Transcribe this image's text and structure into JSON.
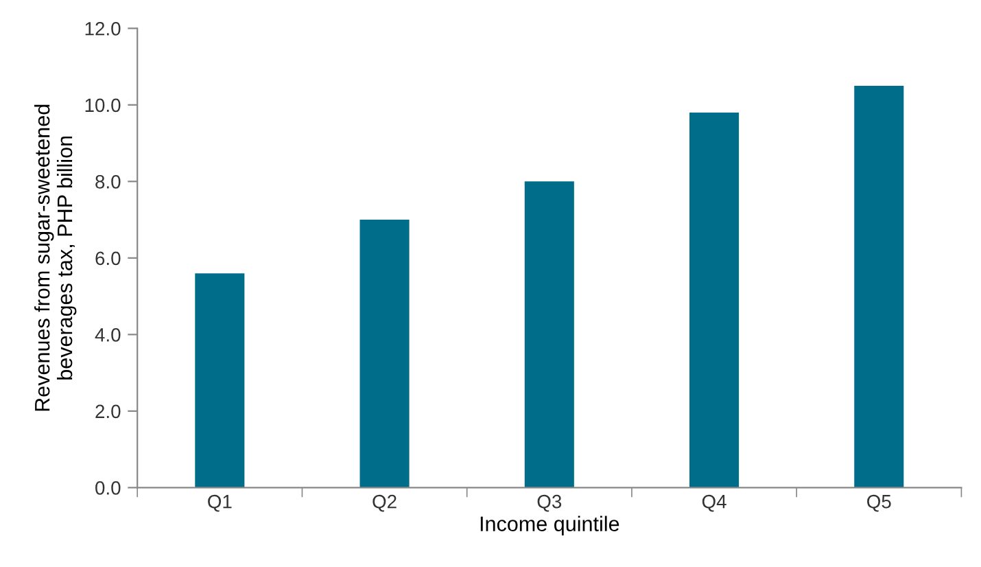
{
  "chart_data": {
    "type": "bar",
    "xlabel": "Income quintile",
    "ylabel": "Revenues from sugar-sweetened\nbeverages tax, PHP billion",
    "categories": [
      "Q1",
      "Q2",
      "Q3",
      "Q4",
      "Q5"
    ],
    "values": [
      5.6,
      7.0,
      8.0,
      9.8,
      10.5
    ],
    "color": "#006e8a",
    "ylim": [
      0,
      12
    ],
    "yticks": [
      {
        "value": 0,
        "label": "0.0"
      },
      {
        "value": 2,
        "label": "2.0"
      },
      {
        "value": 4,
        "label": "4.0"
      },
      {
        "value": 6,
        "label": "6.0"
      },
      {
        "value": 8,
        "label": "8.0"
      },
      {
        "value": 10,
        "label": "10.0"
      },
      {
        "value": 12,
        "label": "12.0"
      }
    ],
    "grid": false
  }
}
